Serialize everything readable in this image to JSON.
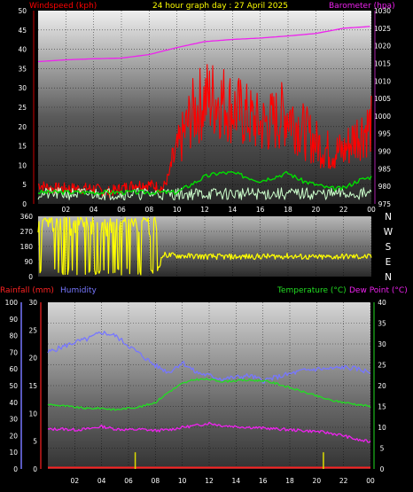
{
  "colors": {
    "background": "#000000",
    "windspeed": "#ff0000",
    "barometer": "#ee22ee",
    "gust_avg": "#00dd00",
    "wind_light": "#ccffcc",
    "direction": "#ffff00",
    "rainfall": "#ff2222",
    "humidity": "#7777ff",
    "temperature": "#22dd22",
    "dewpoint": "#ee22ee",
    "title": "#ffff00"
  },
  "header": {
    "windspeed_label": "Windspeed (kph)",
    "title": "24 hour graph day : 27 April 2025",
    "barometer_label": "Barometer (hpa)"
  },
  "lower_header": {
    "rainfall_label": "Rainfall (mm)",
    "humidity_label": "Humidity",
    "temperature_label": "Temperature (°C)",
    "dewpoint_label": "Dew Point (°C)"
  },
  "compass": [
    "N",
    "W",
    "S",
    "E",
    "N"
  ],
  "chart_data": [
    {
      "type": "line",
      "title": "24 hour graph day : 27 April 2025",
      "x_ticks": [
        "02",
        "04",
        "06",
        "08",
        "10",
        "12",
        "14",
        "16",
        "18",
        "20",
        "22",
        "00"
      ],
      "y_left_label": "Windspeed (kph)",
      "y_left_ticks": [
        0,
        5,
        10,
        15,
        20,
        25,
        30,
        35,
        40,
        45,
        50
      ],
      "y_right_label": "Barometer (hpa)",
      "y_right_ticks": [
        975,
        980,
        985,
        990,
        995,
        1000,
        1005,
        1010,
        1015,
        1020,
        1025,
        1030
      ],
      "ylim_left": [
        0,
        50
      ],
      "ylim_right": [
        975,
        1030
      ],
      "series": [
        {
          "name": "Barometer (hpa)",
          "axis": "right",
          "x_hours": [
            0,
            2,
            4,
            6,
            8,
            10,
            12,
            14,
            16,
            18,
            20,
            22,
            23.9
          ],
          "values": [
            1015.5,
            1016,
            1016.3,
            1016.5,
            1017.5,
            1019.5,
            1021.2,
            1021.8,
            1022.2,
            1022.8,
            1023.5,
            1025,
            1025.5
          ]
        },
        {
          "name": "Windspeed (kph)",
          "axis": "left",
          "x_hours": [
            0,
            1,
            2,
            3,
            4,
            5,
            6,
            7,
            8,
            9,
            10,
            11,
            12,
            13,
            14,
            15,
            16,
            17,
            18,
            19,
            20,
            21,
            22,
            23,
            24
          ],
          "values": [
            5,
            4,
            4,
            4,
            4,
            3,
            4,
            5,
            5,
            4,
            12,
            20,
            24,
            24,
            22,
            20,
            18,
            19,
            21,
            17,
            14,
            12,
            12,
            16,
            18
          ]
        },
        {
          "name": "Average wind",
          "axis": "left",
          "x_hours": [
            0,
            2,
            4,
            6,
            8,
            10,
            11,
            12,
            13,
            14,
            15,
            16,
            17,
            18,
            19,
            20,
            21,
            22,
            23,
            24
          ],
          "values": [
            3,
            3,
            3,
            3,
            3,
            3,
            5,
            7,
            8,
            8,
            7,
            6,
            7,
            8,
            6,
            5,
            4,
            4,
            6,
            7
          ]
        }
      ]
    },
    {
      "type": "line",
      "title": "",
      "y_ticks": [
        0,
        90,
        180,
        270,
        360
      ],
      "ylim": [
        0,
        360
      ],
      "series": [
        {
          "name": "Wind direction",
          "x_hours": [
            0,
            1,
            2,
            3,
            4,
            5,
            6,
            7,
            8,
            8.5,
            9,
            10,
            12,
            14,
            16,
            18,
            20,
            22,
            24
          ],
          "values": [
            200,
            320,
            60,
            330,
            100,
            330,
            250,
            320,
            300,
            20,
            130,
            125,
            120,
            118,
            120,
            122,
            115,
            120,
            118
          ]
        }
      ]
    },
    {
      "type": "line",
      "title": "",
      "x_ticks": [
        "02",
        "04",
        "06",
        "08",
        "10",
        "12",
        "14",
        "16",
        "18",
        "20",
        "22",
        "00"
      ],
      "y_left_outer_label": "Rainfall (mm)",
      "y_left_outer_ticks": [
        0,
        10,
        20,
        30,
        40,
        50,
        60,
        70,
        80,
        90,
        100
      ],
      "y_left_inner_ticks": [
        0,
        5,
        10,
        15,
        20,
        25,
        30
      ],
      "y_right_label": "Temperature (°C)",
      "y_right_ticks": [
        0,
        5,
        10,
        15,
        20,
        25,
        30,
        35,
        40
      ],
      "ylim_humidity": [
        0,
        100
      ],
      "ylim_temp": [
        0,
        40
      ],
      "series": [
        {
          "name": "Humidity",
          "axis": "humidity",
          "x_hours": [
            0,
            1,
            2,
            3,
            4,
            5,
            6,
            7,
            8,
            9,
            10,
            11,
            12,
            13,
            14,
            15,
            16,
            17,
            18,
            19,
            20,
            21,
            22,
            23,
            24
          ],
          "values": [
            70,
            73,
            76,
            78,
            82,
            80,
            74,
            68,
            62,
            58,
            64,
            58,
            56,
            54,
            55,
            56,
            53,
            55,
            57,
            59,
            60,
            60,
            61,
            60,
            58
          ]
        },
        {
          "name": "Temperature (°C)",
          "axis": "temp",
          "x_hours": [
            0,
            1,
            2,
            3,
            4,
            5,
            6,
            7,
            8,
            9,
            10,
            11,
            12,
            13,
            14,
            15,
            16,
            17,
            18,
            19,
            20,
            21,
            22,
            23,
            24
          ],
          "values": [
            15.5,
            15.2,
            14.8,
            14.5,
            14.6,
            14.2,
            14.6,
            15,
            16,
            18.5,
            20.5,
            21.5,
            21.5,
            21,
            21.2,
            21.3,
            21.2,
            20.5,
            19.5,
            18.5,
            17.5,
            16.5,
            16,
            15.5,
            15
          ]
        },
        {
          "name": "Dew Point (°C)",
          "axis": "temp",
          "x_hours": [
            0,
            1,
            2,
            3,
            4,
            5,
            6,
            7,
            8,
            9,
            10,
            11,
            12,
            13,
            14,
            15,
            16,
            17,
            18,
            19,
            20,
            21,
            22,
            23,
            24
          ],
          "values": [
            9.5,
            9.6,
            9.4,
            9.6,
            10.2,
            9.6,
            9.4,
            9.5,
            9.2,
            9.4,
            10,
            10.4,
            11,
            10.4,
            10.2,
            10,
            9.8,
            9.6,
            9.4,
            9.2,
            9,
            8.6,
            8,
            7,
            6.5
          ]
        },
        {
          "name": "Rainfall (mm)",
          "axis": "humidity",
          "x_hours": [
            6.5,
            20.5
          ],
          "values": [
            4,
            4
          ]
        }
      ]
    }
  ]
}
